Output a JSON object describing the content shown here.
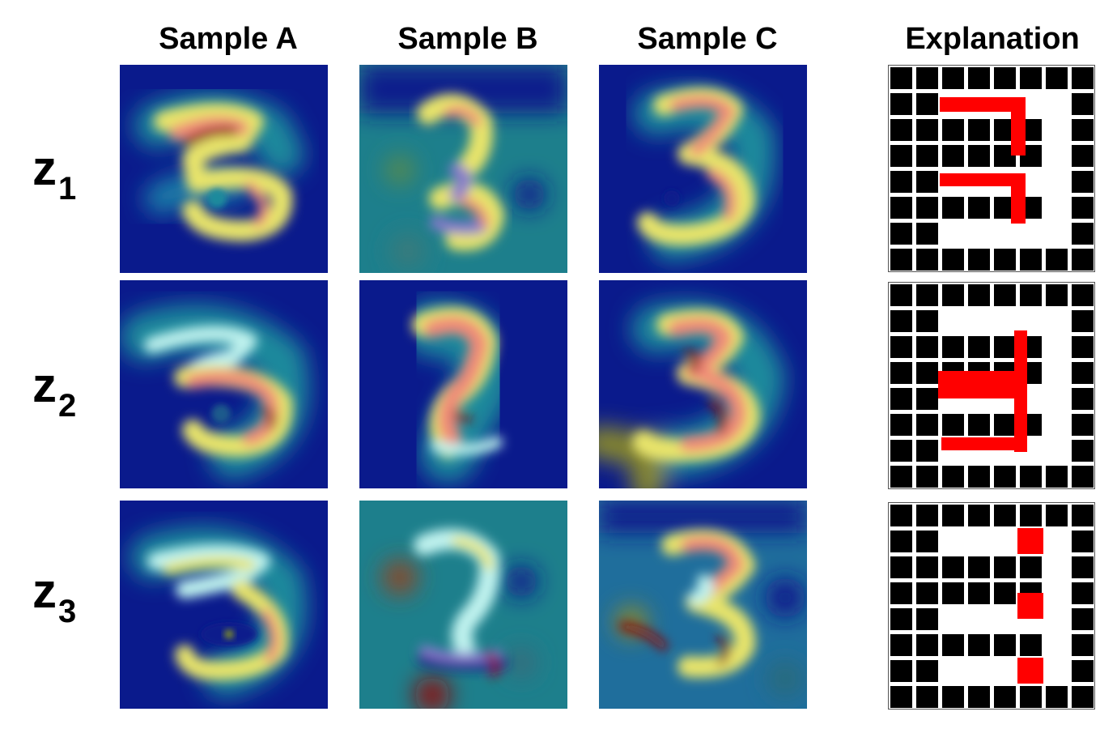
{
  "columns": {
    "sample_a": "Sample A",
    "sample_b": "Sample B",
    "sample_c": "Sample C",
    "explanation": "Explanation"
  },
  "rows": [
    {
      "var": "z",
      "index": "1"
    },
    {
      "var": "z",
      "index": "2"
    },
    {
      "var": "z",
      "index": "3"
    }
  ],
  "colors": {
    "heat_background": "#0a1a8c",
    "heat_low": "#1f8a9c",
    "heat_mid": "#e8e46a",
    "heat_high": "#f08a78",
    "heat_peak": "#8c0a0a",
    "grid_black": "#000000",
    "grid_white": "#ffffff",
    "highlight_red": "#ff0000"
  }
}
